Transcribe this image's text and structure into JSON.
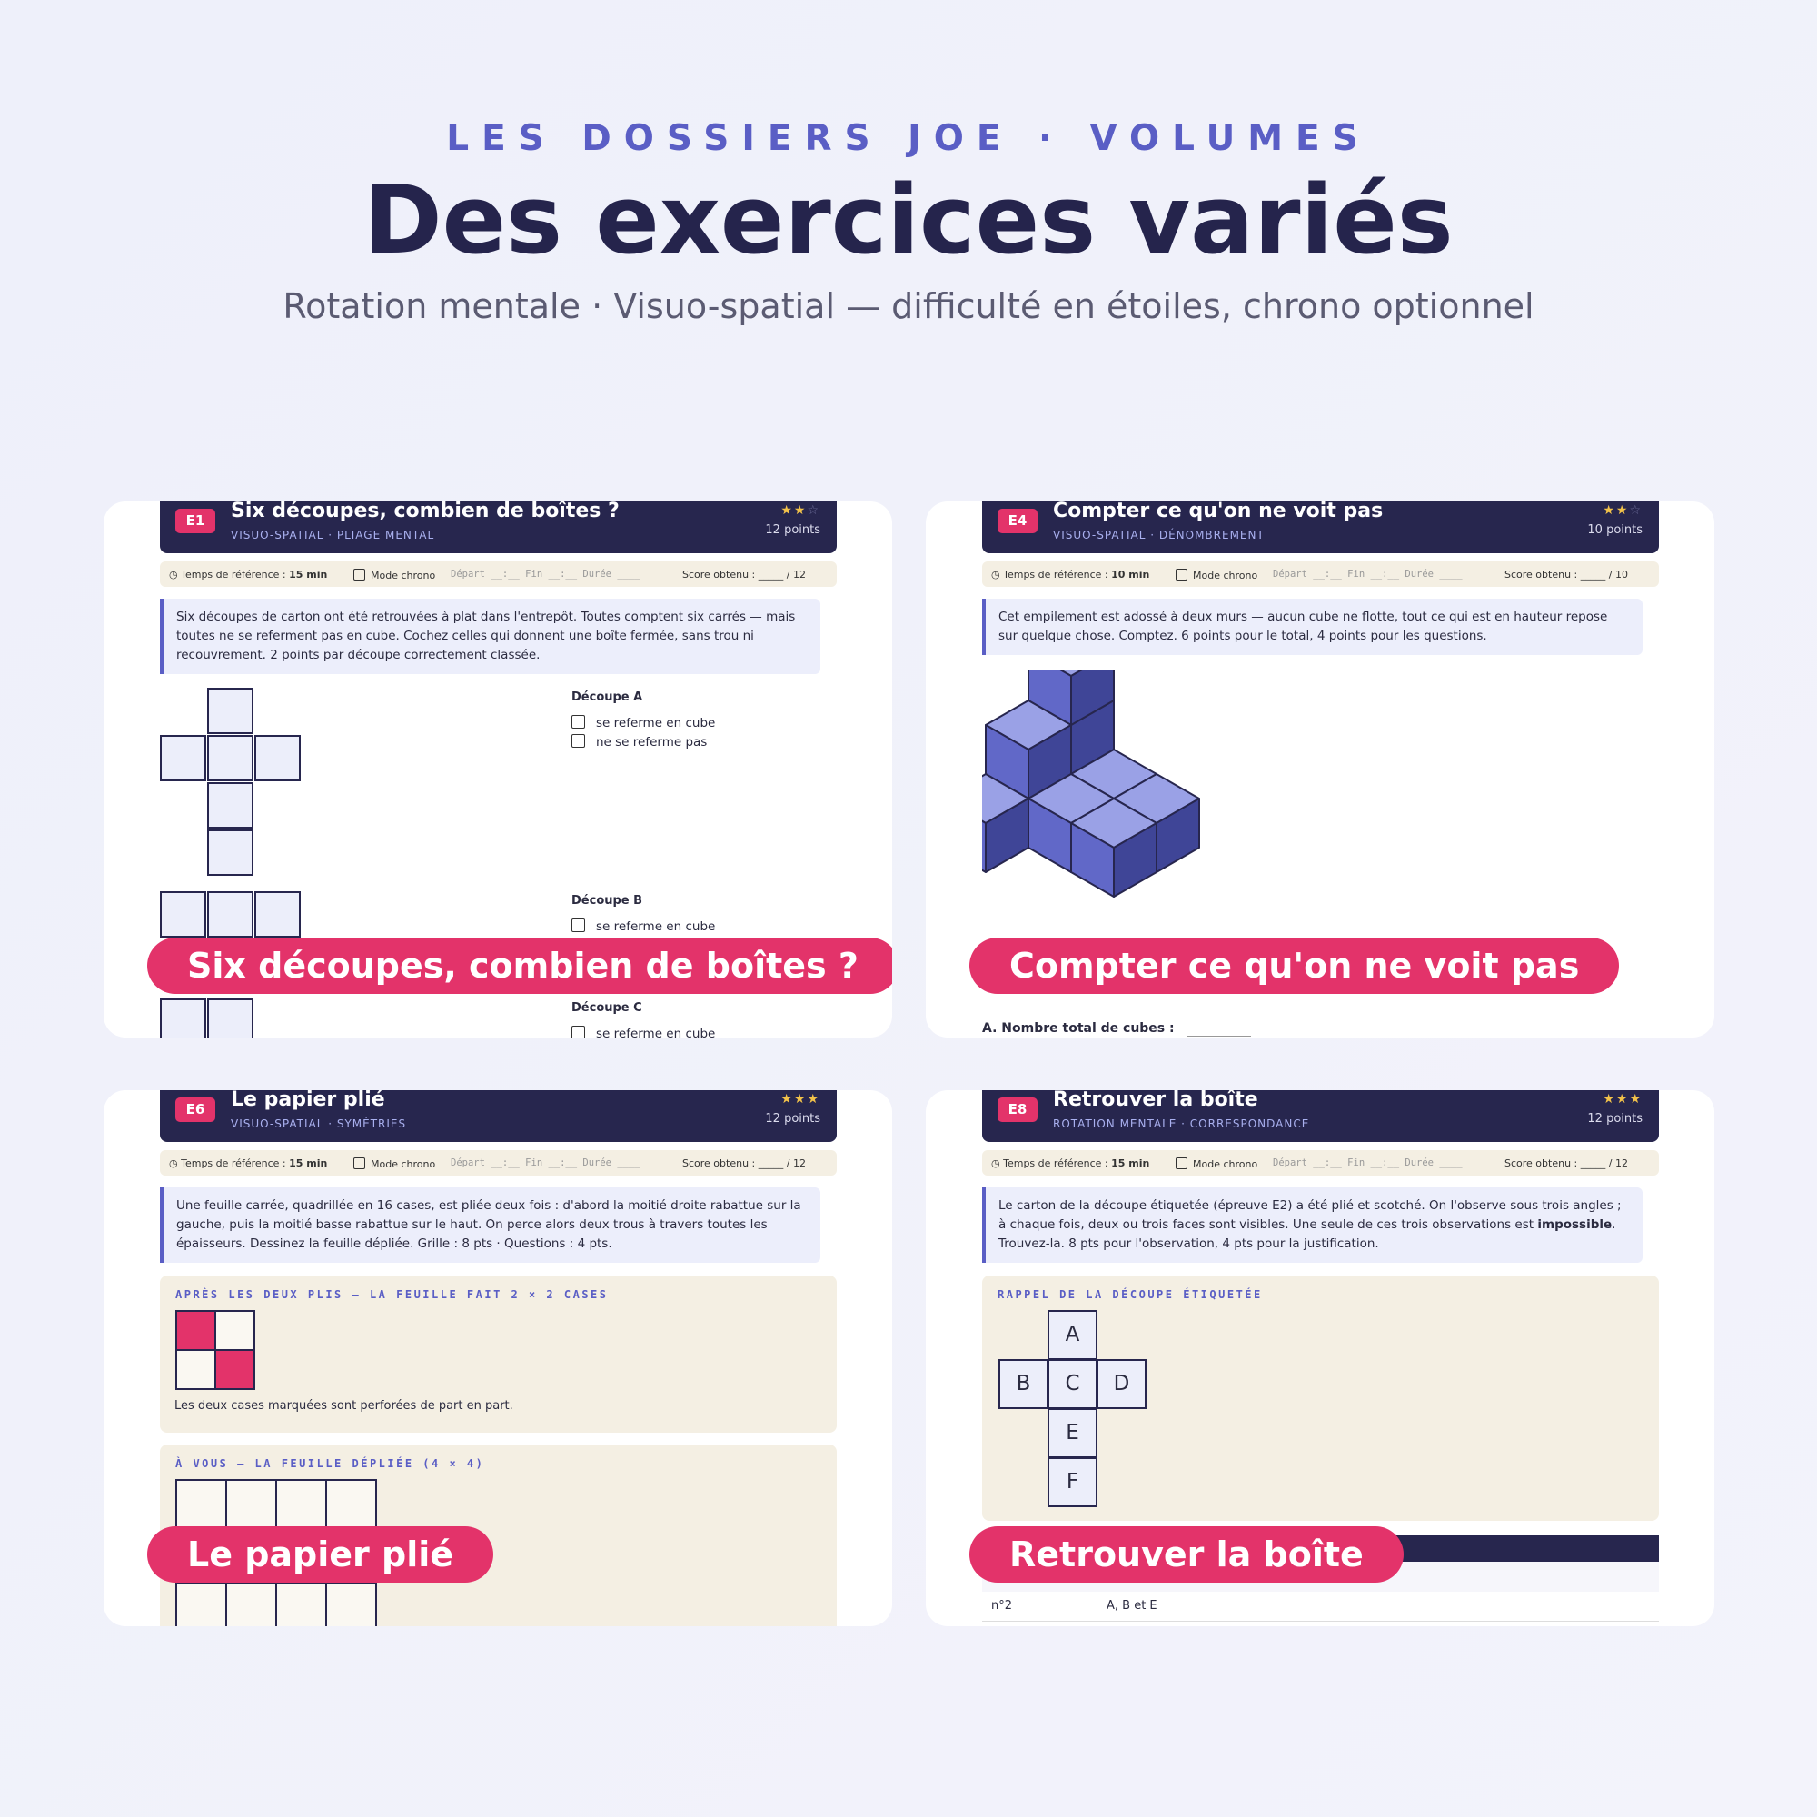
{
  "header": {
    "kicker": "LES DOSSIERS JOE · VOLUMES",
    "title": "Des exercices variés",
    "subtitle": "Rotation mentale · Visuo-spatial — difficulté en étoiles, chrono optionnel"
  },
  "cards": [
    {
      "badge": "E1",
      "title": "Six découpes, combien de boîtes ?",
      "category": "VISUO-SPATIAL · PLIAGE MENTAL",
      "stars_on": "★★",
      "stars_off": "☆",
      "difficulty": 2,
      "points": "12 points",
      "meta": {
        "time_label": "Temps de référence : ",
        "time": "15 min",
        "chrono": "Mode chrono",
        "chrono_fields": "Départ __:__ Fin __:__ Durée ____",
        "score": "Score obtenu : _____ / 12"
      },
      "instructions": "Six découpes de carton ont été retrouvées à plat dans l'entrepôt. Toutes comptent six carrés — mais toutes ne se referment pas en cube. Cochez celles qui donnent une boîte fermée, sans trou ni recouvrement. 2 points par découpe correctement classée.",
      "decoupes": [
        {
          "label": "Découpe A",
          "options": [
            "se referme en cube",
            "ne se referme pas"
          ]
        },
        {
          "label": "Découpe B",
          "options": [
            "se referme en cube"
          ]
        },
        {
          "label": "Découpe C",
          "options": [
            "se referme en cube"
          ]
        }
      ],
      "pill": "Six découpes, combien de boîtes ?"
    },
    {
      "badge": "E4",
      "title": "Compter ce qu'on ne voit pas",
      "category": "VISUO-SPATIAL · DÉNOMBREMENT",
      "stars_on": "★★",
      "stars_off": "☆",
      "difficulty": 2,
      "points": "10 points",
      "meta": {
        "time_label": "Temps de référence : ",
        "time": "10 min",
        "chrono": "Mode chrono",
        "chrono_fields": "Départ __:__ Fin __:__ Durée ____",
        "score": "Score obtenu : _____ / 10"
      },
      "instructions": "Cet empilement est adossé à deux murs — aucun cube ne flotte, tout ce qui est en hauteur repose sur quelque chose. Comptez. 6 points pour le total, 4 points pour les questions.",
      "question": "A. Nombre total de cubes :",
      "pill": "Compter ce qu'on ne voit pas"
    },
    {
      "badge": "E6",
      "title": "Le papier plié",
      "category": "VISUO-SPATIAL · SYMÉTRIES",
      "stars_on": "★★★",
      "stars_off": "",
      "difficulty": 3,
      "points": "12 points",
      "meta": {
        "time_label": "Temps de référence : ",
        "time": "15 min",
        "chrono": "Mode chrono",
        "chrono_fields": "Départ __:__ Fin __:__ Durée ____",
        "score": "Score obtenu : _____ / 12"
      },
      "instructions": "Une feuille carrée, quadrillée en 16 cases, est pliée deux fois : d'abord la moitié droite rabattue sur la gauche, puis la moitié basse rabattue sur le haut. On perce alors deux trous à travers toutes les épaisseurs. Dessinez la feuille dépliée. Grille : 8 pts · Questions : 4 pts.",
      "section1_title": "APRÈS LES DEUX PLIS — LA FEUILLE FAIT 2 × 2 CASES",
      "section1_caption": "Les deux cases marquées sont perforées de part en part.",
      "section2_title": "À VOUS — LA FEUILLE DÉPLIÉE (4 × 4)",
      "pill": "Le papier plié"
    },
    {
      "badge": "E8",
      "title": "Retrouver la boîte",
      "category": "ROTATION MENTALE · CORRESPONDANCE",
      "stars_on": "★★★",
      "stars_off": "",
      "difficulty": 3,
      "points": "12 points",
      "meta": {
        "time_label": "Temps de référence : ",
        "time": "15 min",
        "chrono": "Mode chrono",
        "chrono_fields": "Départ __:__ Fin __:__ Durée ____",
        "score": "Score obtenu : _____ / 12"
      },
      "instr_part1": "Le carton de la découpe étiquetée (épreuve E2) a été plié et scotché. On l'observe sous trois angles ; à chaque fois, deux ou trois faces sont visibles. Une seule de ces trois observations est ",
      "instr_bold": "impossible",
      "instr_part2": ". Trouvez-la. 8 pts pour l'observation, 4 pts pour la justification.",
      "section_title": "RAPPEL DE LA DÉCOUPE ÉTIQUETÉE",
      "faces": [
        "A",
        "B",
        "C",
        "D",
        "E",
        "F"
      ],
      "table_row": {
        "col1": "n°2",
        "col2": "A, B et E"
      },
      "pill": "Retrouver la boîte"
    }
  ]
}
